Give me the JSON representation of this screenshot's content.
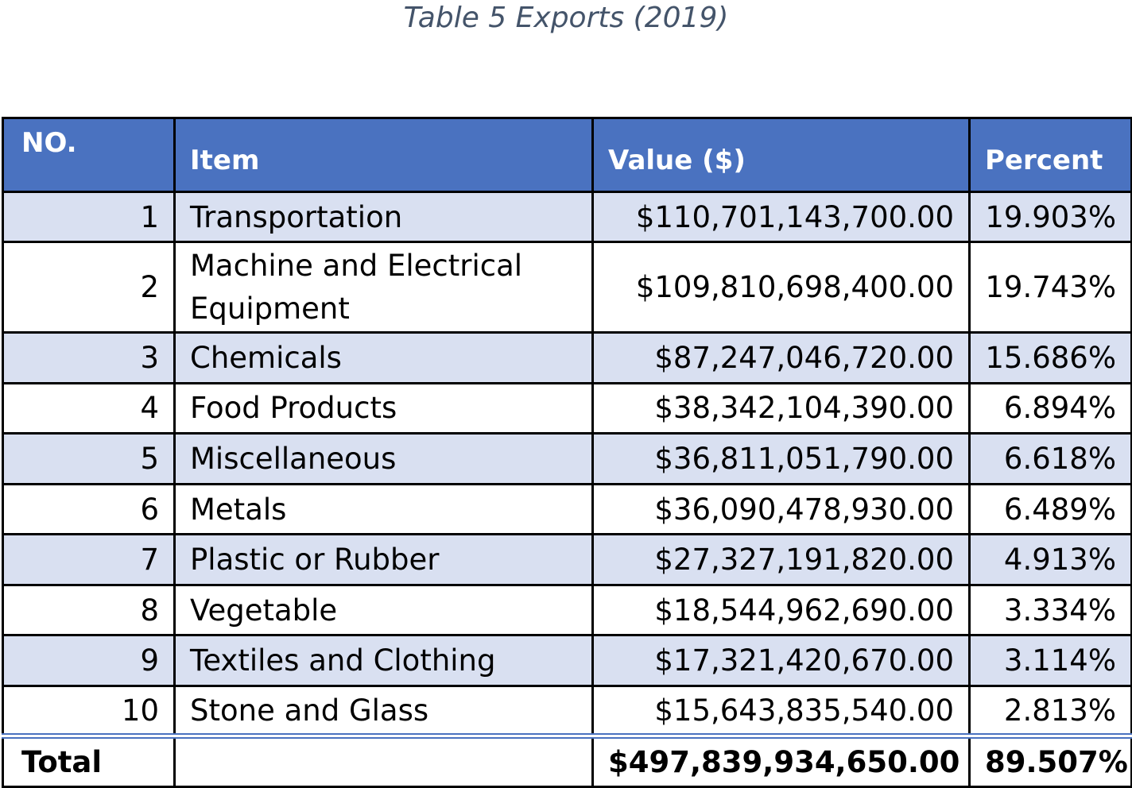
{
  "caption": "Table 5 Exports (2019)",
  "headers": {
    "no": "NO.",
    "item": "Item",
    "value": "Value ($)",
    "percent": "Percent"
  },
  "rows": [
    {
      "no": "1",
      "item": "Transportation",
      "value": "$110,701,143,700.00",
      "percent": "19.903%"
    },
    {
      "no": "2",
      "item": "Machine and Electrical Equipment",
      "value": "$109,810,698,400.00",
      "percent": "19.743%"
    },
    {
      "no": "3",
      "item": "Chemicals",
      "value": "$87,247,046,720.00",
      "percent": "15.686%"
    },
    {
      "no": "4",
      "item": "Food Products",
      "value": "$38,342,104,390.00",
      "percent": "6.894%"
    },
    {
      "no": "5",
      "item": "Miscellaneous",
      "value": "$36,811,051,790.00",
      "percent": "6.618%"
    },
    {
      "no": "6",
      "item": "Metals",
      "value": "$36,090,478,930.00",
      "percent": "6.489%"
    },
    {
      "no": "7",
      "item": "Plastic or Rubber",
      "value": "$27,327,191,820.00",
      "percent": "4.913%"
    },
    {
      "no": "8",
      "item": "Vegetable",
      "value": "$18,544,962,690.00",
      "percent": "3.334%"
    },
    {
      "no": "9",
      "item": "Textiles and Clothing",
      "value": "$17,321,420,670.00",
      "percent": "3.114%"
    },
    {
      "no": "10",
      "item": "Stone and Glass",
      "value": "$15,643,835,540.00",
      "percent": "2.813%"
    }
  ],
  "total": {
    "label": "Total",
    "item": "",
    "value": "$497,839,934,650.00",
    "percent": "89.507%"
  },
  "colors": {
    "header_bg": "#4a72c0",
    "shaded_row_bg": "#d9e0f1",
    "caption_text": "#44546a"
  }
}
